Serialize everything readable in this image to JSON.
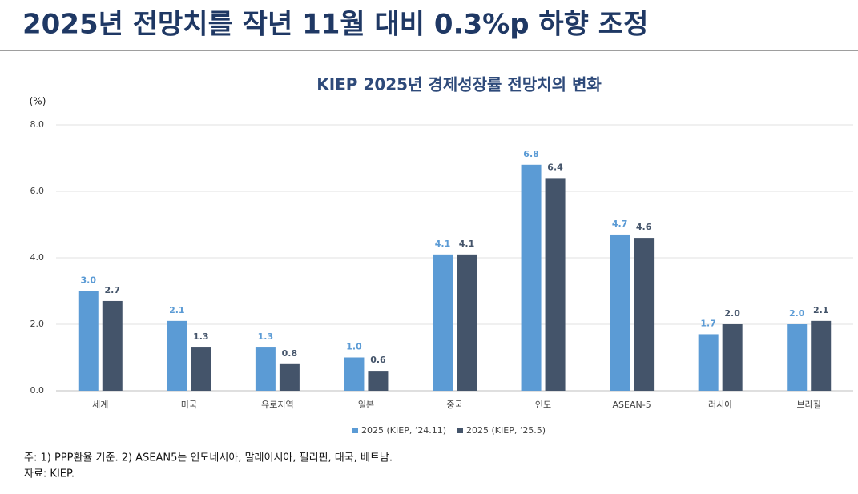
{
  "title": "2025년 전망치를 작년 11월 대비 0.3%p 하향 조정",
  "chart_data": {
    "type": "bar",
    "title": "KIEP 2025년 경제성장률 전망치의 변화",
    "y_label": "(%)",
    "categories": [
      "세계",
      "미국",
      "유로지역",
      "일본",
      "중국",
      "인도",
      "ASEAN-5",
      "러시아",
      "브라질"
    ],
    "series": [
      {
        "name": "2025 (KIEP, ’24.11)",
        "color": "#5b9bd5",
        "values": [
          3,
          2.1,
          1.3,
          1,
          4.1,
          6.8,
          4.7,
          1.7,
          2
        ],
        "value_labels": [
          "3.0",
          "2.1",
          "1.3",
          "1.0",
          "4.1",
          "6.8",
          "4.7",
          "1.7",
          "2.0"
        ]
      },
      {
        "name": "2025 (KIEP, ’25.5)",
        "color": "#44546a",
        "values": [
          2.7,
          1.3,
          0.8,
          0.6,
          4.1,
          6.4,
          4.6,
          2,
          2.1
        ],
        "value_labels": [
          "2.7",
          "1.3",
          "0.8",
          "0.6",
          "4.1",
          "6.4",
          "4.6",
          "2.0",
          "2.1"
        ]
      }
    ],
    "ylim": [
      0,
      8
    ],
    "yticks": [
      {
        "value": 0,
        "label": "0.0"
      },
      {
        "value": 2,
        "label": "2.0"
      },
      {
        "value": 4,
        "label": "4.0"
      },
      {
        "value": 6,
        "label": "6.0"
      },
      {
        "value": 8,
        "label": "8.0"
      }
    ],
    "grid": true,
    "legend": "bottom"
  },
  "notes": [
    "주: 1) PPP환율 기준. 2) ASEAN5는 인도네시아, 말레이시아, 필리핀, 태국, 베트남.",
    "자료: KIEP."
  ]
}
